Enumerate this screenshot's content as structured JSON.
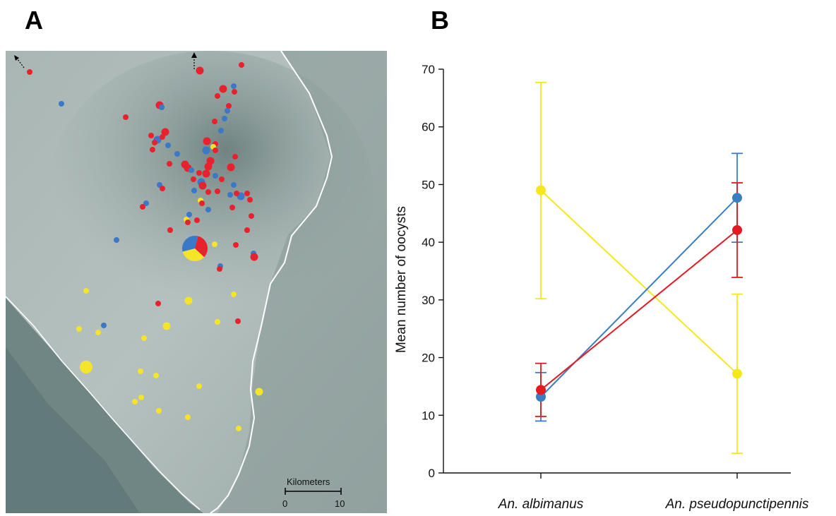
{
  "panels": {
    "a_label": "A",
    "b_label": "B"
  },
  "colors": {
    "red": "#e8222d",
    "blue": "#3b78c8",
    "yellow": "#f4e42a",
    "line_blue": "#3a7ec2",
    "line_red": "#e41a22",
    "line_yellow": "#f5e71b"
  },
  "map": {
    "scale_title": "Kilometers",
    "scale_min": "0",
    "scale_max": "10",
    "dots": [
      {
        "x": 34,
        "y": 102,
        "c": "red",
        "s": "sm"
      },
      {
        "x": 79,
        "y": 147,
        "c": "blue",
        "s": "sm"
      },
      {
        "x": 275,
        "y": 100,
        "c": "red",
        "s": "md"
      },
      {
        "x": 334,
        "y": 92,
        "c": "red",
        "s": "sm"
      },
      {
        "x": 308,
        "y": 126,
        "c": "red",
        "s": "md"
      },
      {
        "x": 323,
        "y": 122,
        "c": "blue",
        "s": "sm"
      },
      {
        "x": 300,
        "y": 136,
        "c": "red",
        "s": "sm"
      },
      {
        "x": 324,
        "y": 130,
        "c": "red",
        "s": "sm"
      },
      {
        "x": 218,
        "y": 149,
        "c": "red",
        "s": "md"
      },
      {
        "x": 221,
        "y": 152,
        "c": "blue",
        "s": "sm"
      },
      {
        "x": 316,
        "y": 150,
        "c": "red",
        "s": "sm"
      },
      {
        "x": 314,
        "y": 157,
        "c": "blue",
        "s": "sm"
      },
      {
        "x": 310,
        "y": 168,
        "c": "blue",
        "s": "sm"
      },
      {
        "x": 296,
        "y": 172,
        "c": "red",
        "s": "sm"
      },
      {
        "x": 170,
        "y": 166,
        "c": "red",
        "s": "sm"
      },
      {
        "x": 305,
        "y": 185,
        "c": "blue",
        "s": "sm"
      },
      {
        "x": 226,
        "y": 187,
        "c": "red",
        "s": "md"
      },
      {
        "x": 206,
        "y": 192,
        "c": "red",
        "s": "sm"
      },
      {
        "x": 215,
        "y": 198,
        "c": "blue",
        "s": "md"
      },
      {
        "x": 211,
        "y": 202,
        "c": "red",
        "s": "sm"
      },
      {
        "x": 222,
        "y": 194,
        "c": "red",
        "s": "sm"
      },
      {
        "x": 230,
        "y": 206,
        "c": "blue",
        "s": "sm"
      },
      {
        "x": 208,
        "y": 212,
        "c": "red",
        "s": "sm"
      },
      {
        "x": 285,
        "y": 200,
        "c": "red",
        "s": "md"
      },
      {
        "x": 297,
        "y": 204,
        "c": "red",
        "s": "sm"
      },
      {
        "x": 243,
        "y": 218,
        "c": "blue",
        "s": "sm"
      },
      {
        "x": 284,
        "y": 213,
        "c": "blue",
        "s": "md"
      },
      {
        "x": 294,
        "y": 208,
        "c": "yellow",
        "s": "sm"
      },
      {
        "x": 297,
        "y": 213,
        "c": "red",
        "s": "sm"
      },
      {
        "x": 325,
        "y": 222,
        "c": "red",
        "s": "sm"
      },
      {
        "x": 232,
        "y": 232,
        "c": "red",
        "s": "sm"
      },
      {
        "x": 254,
        "y": 233,
        "c": "red",
        "s": "md"
      },
      {
        "x": 258,
        "y": 238,
        "c": "red",
        "s": "md"
      },
      {
        "x": 290,
        "y": 228,
        "c": "red",
        "s": "md"
      },
      {
        "x": 287,
        "y": 236,
        "c": "red",
        "s": "md"
      },
      {
        "x": 319,
        "y": 237,
        "c": "red",
        "s": "md"
      },
      {
        "x": 263,
        "y": 241,
        "c": "blue",
        "s": "sm"
      },
      {
        "x": 274,
        "y": 245,
        "c": "red",
        "s": "sm"
      },
      {
        "x": 284,
        "y": 246,
        "c": "red",
        "s": "md"
      },
      {
        "x": 297,
        "y": 249,
        "c": "blue",
        "s": "sm"
      },
      {
        "x": 266,
        "y": 254,
        "c": "red",
        "s": "sm"
      },
      {
        "x": 277,
        "y": 258,
        "c": "blue",
        "s": "md"
      },
      {
        "x": 279,
        "y": 263,
        "c": "red",
        "s": "md"
      },
      {
        "x": 306,
        "y": 254,
        "c": "red",
        "s": "sm"
      },
      {
        "x": 218,
        "y": 262,
        "c": "blue",
        "s": "sm"
      },
      {
        "x": 222,
        "y": 267,
        "c": "red",
        "s": "sm"
      },
      {
        "x": 323,
        "y": 262,
        "c": "blue",
        "s": "sm"
      },
      {
        "x": 267,
        "y": 270,
        "c": "blue",
        "s": "sm"
      },
      {
        "x": 287,
        "y": 272,
        "c": "red",
        "s": "sm"
      },
      {
        "x": 300,
        "y": 271,
        "c": "red",
        "s": "sm"
      },
      {
        "x": 318,
        "y": 276,
        "c": "blue",
        "s": "sm"
      },
      {
        "x": 333,
        "y": 278,
        "c": "blue",
        "s": "md"
      },
      {
        "x": 327,
        "y": 274,
        "c": "red",
        "s": "sm"
      },
      {
        "x": 342,
        "y": 274,
        "c": "red",
        "s": "sm"
      },
      {
        "x": 346,
        "y": 283,
        "c": "red",
        "s": "sm"
      },
      {
        "x": 276,
        "y": 284,
        "c": "yellow",
        "s": "sm"
      },
      {
        "x": 278,
        "y": 288,
        "c": "red",
        "s": "sm"
      },
      {
        "x": 199,
        "y": 288,
        "c": "blue",
        "s": "sm"
      },
      {
        "x": 194,
        "y": 293,
        "c": "red",
        "s": "sm"
      },
      {
        "x": 287,
        "y": 297,
        "c": "blue",
        "s": "sm"
      },
      {
        "x": 321,
        "y": 294,
        "c": "red",
        "s": "sm"
      },
      {
        "x": 260,
        "y": 304,
        "c": "blue",
        "s": "sm"
      },
      {
        "x": 256,
        "y": 311,
        "c": "yellow",
        "s": "sm"
      },
      {
        "x": 258,
        "y": 315,
        "c": "red",
        "s": "sm"
      },
      {
        "x": 271,
        "y": 312,
        "c": "red",
        "s": "sm"
      },
      {
        "x": 348,
        "y": 306,
        "c": "red",
        "s": "sm"
      },
      {
        "x": 233,
        "y": 326,
        "c": "red",
        "s": "sm"
      },
      {
        "x": 342,
        "y": 326,
        "c": "red",
        "s": "sm"
      },
      {
        "x": 157,
        "y": 340,
        "c": "blue",
        "s": "sm"
      },
      {
        "x": 296,
        "y": 346,
        "c": "yellow",
        "s": "sm"
      },
      {
        "x": 326,
        "y": 347,
        "c": "red",
        "s": "sm"
      },
      {
        "x": 351,
        "y": 359,
        "c": "blue",
        "s": "sm"
      },
      {
        "x": 352,
        "y": 364,
        "c": "red",
        "s": "md"
      },
      {
        "x": 304,
        "y": 377,
        "c": "blue",
        "s": "sm"
      },
      {
        "x": 303,
        "y": 381,
        "c": "red",
        "s": "sm"
      },
      {
        "x": 114,
        "y": 412,
        "c": "yellow",
        "s": "sm"
      },
      {
        "x": 323,
        "y": 417,
        "c": "yellow",
        "s": "sm"
      },
      {
        "x": 259,
        "y": 426,
        "c": "yellow",
        "s": "md"
      },
      {
        "x": 216,
        "y": 430,
        "c": "red",
        "s": "sm"
      },
      {
        "x": 300,
        "y": 456,
        "c": "yellow",
        "s": "sm"
      },
      {
        "x": 329,
        "y": 455,
        "c": "red",
        "s": "sm"
      },
      {
        "x": 228,
        "y": 462,
        "c": "yellow",
        "s": "md"
      },
      {
        "x": 139,
        "y": 461,
        "c": "blue",
        "s": "sm"
      },
      {
        "x": 104,
        "y": 466,
        "c": "yellow",
        "s": "sm"
      },
      {
        "x": 131,
        "y": 471,
        "c": "yellow",
        "s": "sm"
      },
      {
        "x": 196,
        "y": 479,
        "c": "yellow",
        "s": "sm"
      },
      {
        "x": 114,
        "y": 520,
        "c": "yellow",
        "s": "lg"
      },
      {
        "x": 191,
        "y": 526,
        "c": "yellow",
        "s": "sm"
      },
      {
        "x": 213,
        "y": 532,
        "c": "yellow",
        "s": "sm"
      },
      {
        "x": 274,
        "y": 547,
        "c": "yellow",
        "s": "sm"
      },
      {
        "x": 359,
        "y": 555,
        "c": "yellow",
        "s": "md"
      },
      {
        "x": 192,
        "y": 563,
        "c": "yellow",
        "s": "sm"
      },
      {
        "x": 183,
        "y": 569,
        "c": "yellow",
        "s": "sm"
      },
      {
        "x": 217,
        "y": 582,
        "c": "yellow",
        "s": "sm"
      },
      {
        "x": 258,
        "y": 591,
        "c": "yellow",
        "s": "sm"
      },
      {
        "x": 330,
        "y": 607,
        "c": "yellow",
        "s": "sm"
      }
    ],
    "pie": {
      "x": 268,
      "y": 352,
      "r": 18,
      "slices": [
        {
          "c": "red",
          "frac": 0.33
        },
        {
          "c": "yellow",
          "frac": 0.34
        },
        {
          "c": "blue",
          "frac": 0.33
        }
      ]
    }
  },
  "chart_data": {
    "type": "line",
    "title": "",
    "ylabel": "Mean number of oocysts",
    "xlabel": "",
    "categories": [
      "An. albimanus",
      "An. pseudopunctipennis"
    ],
    "ylim": [
      0,
      70
    ],
    "yticks": [
      0,
      10,
      20,
      30,
      40,
      50,
      60,
      70
    ],
    "grid": false,
    "legend": "none",
    "series": [
      {
        "color": "yellow",
        "values": [
          49,
          17.2
        ],
        "err_low": [
          30.2,
          3.4
        ],
        "err_high": [
          67.7,
          31.0
        ]
      },
      {
        "color": "blue",
        "values": [
          13.2,
          47.7
        ],
        "err_low": [
          9.0,
          40.0
        ],
        "err_high": [
          17.4,
          55.4
        ]
      },
      {
        "color": "red",
        "values": [
          14.4,
          42.1
        ],
        "err_low": [
          9.8,
          33.9
        ],
        "err_high": [
          19.0,
          50.3
        ]
      }
    ]
  }
}
